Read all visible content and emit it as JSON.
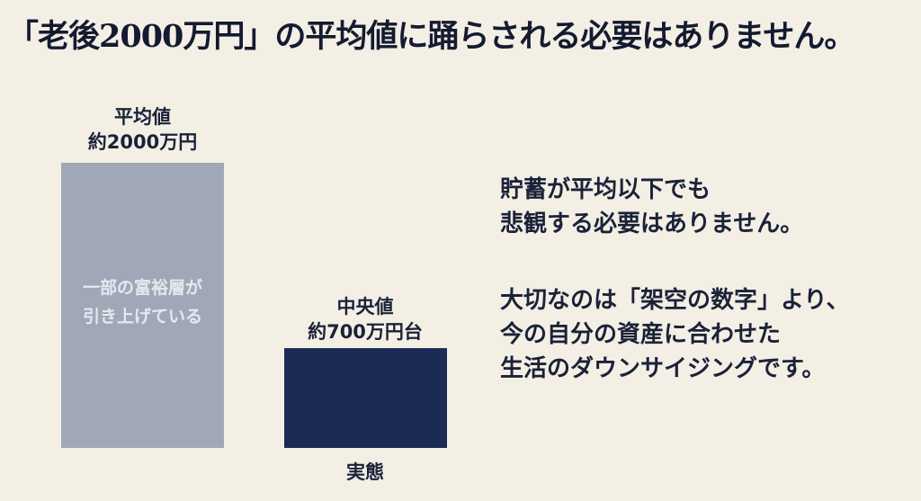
{
  "title": "「老後2000万円」の平均値に踊らされる必要はありません。",
  "chart_data": {
    "type": "bar",
    "categories": [
      "平均値",
      "中央値"
    ],
    "values": [
      2000,
      700
    ],
    "unit": "万円",
    "bar_labels": [
      {
        "line1": "平均値",
        "line2": "約2000万円"
      },
      {
        "line1": "中央値",
        "line2": "約700万円台"
      }
    ],
    "inner_annotation": [
      "一部の富裕層が",
      "引き上げている"
    ],
    "bottom_label": "実態",
    "colors": [
      "#a0a8b8",
      "#1c2a56"
    ],
    "ylim": [
      0,
      2000
    ],
    "grid": false
  },
  "message": {
    "para1": [
      "貯蓄が平均以下でも",
      "悲観する必要はありません。"
    ],
    "para2": [
      "大切なのは「架空の数字」より、",
      "今の自分の資産に合わせた",
      "生活のダウンサイジングです。"
    ]
  }
}
